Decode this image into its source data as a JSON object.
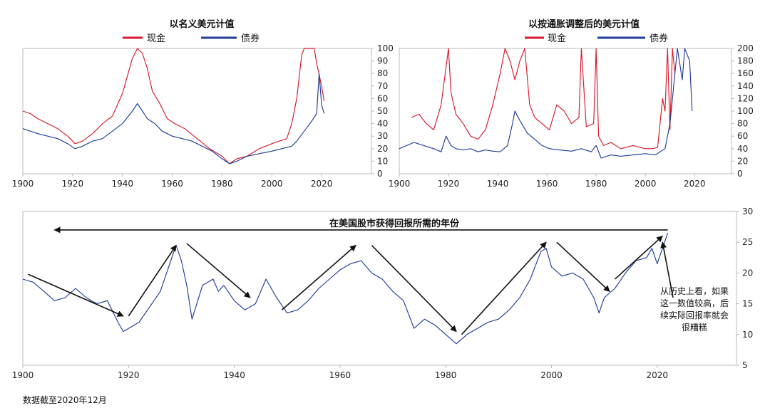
{
  "colors": {
    "cash": "#d7192b",
    "bonds": "#1f3d9a",
    "arrow": "#111111",
    "axis": "#b8b8b8"
  },
  "footnote": "数据截至2020年12月",
  "chart_data": [
    {
      "type": "line",
      "title": "以名义美元计值",
      "legend": "top-center",
      "xlim": [
        1900,
        2040
      ],
      "ylim": [
        0,
        100
      ],
      "x_ticks": [
        1900,
        1920,
        1940,
        1960,
        1980,
        2000,
        2020
      ],
      "y_ticks": [
        0,
        10,
        20,
        30,
        40,
        50,
        60,
        70,
        80,
        90,
        100
      ],
      "series": [
        {
          "name": "现金",
          "color": "#d7192b",
          "x": [
            1900,
            1903,
            1906,
            1910,
            1914,
            1918,
            1921,
            1924,
            1928,
            1932,
            1936,
            1940,
            1942,
            1944,
            1946,
            1948,
            1950,
            1952,
            1955,
            1958,
            1961,
            1965,
            1970,
            1975,
            1980,
            1983,
            1986,
            1990,
            1995,
            2000,
            2003,
            2006,
            2008,
            2010,
            2012,
            2013,
            2015,
            2017,
            2018,
            2020,
            2021
          ],
          "y": [
            50,
            48,
            44,
            40,
            36,
            30,
            24,
            26,
            32,
            40,
            46,
            64,
            78,
            92,
            100,
            96,
            84,
            66,
            56,
            44,
            40,
            36,
            28,
            20,
            14,
            8,
            12,
            14,
            20,
            24,
            26,
            28,
            40,
            60,
            95,
            100,
            100,
            100,
            88,
            70,
            58
          ]
        },
        {
          "name": "债券",
          "color": "#1f3d9a",
          "x": [
            1900,
            1903,
            1906,
            1910,
            1914,
            1918,
            1921,
            1924,
            1928,
            1932,
            1936,
            1940,
            1944,
            1946,
            1948,
            1950,
            1953,
            1956,
            1960,
            1964,
            1968,
            1972,
            1976,
            1980,
            1983,
            1986,
            1990,
            1995,
            2000,
            2004,
            2008,
            2010,
            2013,
            2016,
            2018,
            2019,
            2020,
            2021
          ],
          "y": [
            36,
            34,
            32,
            30,
            28,
            24,
            20,
            22,
            26,
            28,
            34,
            40,
            50,
            56,
            50,
            44,
            40,
            34,
            30,
            28,
            26,
            22,
            18,
            12,
            8,
            10,
            14,
            16,
            18,
            20,
            22,
            26,
            34,
            42,
            48,
            80,
            55,
            48
          ]
        }
      ]
    },
    {
      "type": "line",
      "title": "以按通胀调整后的美元计值",
      "legend": "top-center",
      "xlim": [
        1900,
        2035
      ],
      "ylim": [
        0,
        200
      ],
      "x_ticks": [
        1900,
        1920,
        1940,
        1960,
        1980,
        2000,
        2020
      ],
      "y_ticks": [
        0,
        20,
        40,
        60,
        80,
        100,
        120,
        140,
        160,
        180,
        200
      ],
      "series": [
        {
          "name": "现金",
          "color": "#d7192b",
          "x": [
            1905,
            1908,
            1911,
            1914,
            1917,
            1919,
            1920,
            1921,
            1923,
            1926,
            1929,
            1932,
            1935,
            1938,
            1941,
            1943,
            1945,
            1947,
            1949,
            1951,
            1953,
            1955,
            1958,
            1961,
            1964,
            1967,
            1970,
            1973,
            1974,
            1976,
            1979,
            1980,
            1981,
            1983,
            1986,
            1990,
            1995,
            2000,
            2003,
            2005,
            2007,
            2008,
            2009,
            2010,
            2011,
            2012
          ],
          "y": [
            90,
            95,
            80,
            70,
            110,
            170,
            200,
            130,
            95,
            80,
            60,
            55,
            70,
            110,
            160,
            200,
            180,
            150,
            180,
            200,
            110,
            90,
            80,
            70,
            110,
            100,
            80,
            90,
            200,
            75,
            80,
            200,
            60,
            45,
            50,
            40,
            45,
            40,
            40,
            42,
            120,
            100,
            200,
            70,
            200,
            160
          ]
        },
        {
          "name": "债券",
          "color": "#1f3d9a",
          "x": [
            1900,
            1903,
            1906,
            1910,
            1914,
            1917,
            1919,
            1921,
            1923,
            1926,
            1929,
            1932,
            1935,
            1938,
            1941,
            1944,
            1946,
            1947,
            1949,
            1952,
            1955,
            1958,
            1961,
            1965,
            1970,
            1974,
            1978,
            1980,
            1982,
            1986,
            1990,
            1995,
            2000,
            2004,
            2008,
            2010,
            2011,
            2013,
            2015,
            2016,
            2018,
            2019
          ],
          "y": [
            40,
            45,
            50,
            45,
            40,
            35,
            60,
            45,
            40,
            38,
            40,
            35,
            38,
            36,
            35,
            45,
            80,
            100,
            85,
            65,
            55,
            45,
            40,
            38,
            36,
            40,
            35,
            45,
            25,
            30,
            28,
            30,
            32,
            30,
            40,
            80,
            120,
            200,
            150,
            200,
            180,
            100
          ]
        }
      ]
    },
    {
      "type": "line",
      "title": "在美国股市获得回报所需的年份",
      "xlim": [
        1900,
        2035
      ],
      "ylim": [
        5,
        30
      ],
      "x_ticks": [
        1900,
        1920,
        1940,
        1960,
        1980,
        2000,
        2020
      ],
      "y_ticks": [
        5,
        10,
        15,
        20,
        25,
        30
      ],
      "annotation": [
        "从历史上看，如果",
        "这一数值较高，后",
        "续实际回报率就会",
        "很糟糕"
      ],
      "arrows": [
        [
          1901,
          19.8,
          1919,
          13.0
        ],
        [
          1920,
          13.0,
          1929,
          24.5
        ],
        [
          1931,
          24.8,
          1943,
          16.0
        ],
        [
          1949,
          14.0,
          1963,
          24.5
        ],
        [
          1966,
          24.5,
          1982,
          10.5
        ],
        [
          1983,
          10.0,
          1999,
          25.0
        ],
        [
          2001,
          25.0,
          2011,
          17.0
        ],
        [
          2012,
          19.0,
          2021,
          26.0
        ],
        [
          2023,
          16.0,
          2021,
          25.0
        ],
        [
          2022,
          27.0,
          1906,
          27.0
        ]
      ],
      "series": [
        {
          "name": "",
          "color": "#1f3d9a",
          "x": [
            1900,
            1902,
            1904,
            1906,
            1908,
            1910,
            1912,
            1914,
            1916,
            1918,
            1919,
            1920,
            1922,
            1924,
            1926,
            1928,
            1929,
            1930,
            1931,
            1932,
            1934,
            1936,
            1937,
            1938,
            1940,
            1942,
            1944,
            1946,
            1948,
            1950,
            1952,
            1954,
            1956,
            1958,
            1960,
            1962,
            1964,
            1966,
            1968,
            1970,
            1972,
            1974,
            1976,
            1978,
            1980,
            1982,
            1984,
            1986,
            1988,
            1990,
            1992,
            1994,
            1996,
            1998,
            1999,
            2000,
            2002,
            2004,
            2006,
            2008,
            2009,
            2010,
            2012,
            2014,
            2016,
            2018,
            2019,
            2020,
            2022
          ],
          "y": [
            19.0,
            18.5,
            17.0,
            15.5,
            16.0,
            17.5,
            16.0,
            15.0,
            15.5,
            12.0,
            10.5,
            11.0,
            12.0,
            14.5,
            17.0,
            22.0,
            24.5,
            22.0,
            18.0,
            12.5,
            18.0,
            19.0,
            17.0,
            18.0,
            15.5,
            14.0,
            15.0,
            19.0,
            16.0,
            13.5,
            14.0,
            15.5,
            17.5,
            19.0,
            20.5,
            21.5,
            22.0,
            20.0,
            19.0,
            17.0,
            15.5,
            11.0,
            12.5,
            11.5,
            10.0,
            8.5,
            10.0,
            11.0,
            12.0,
            12.5,
            14.0,
            16.0,
            19.0,
            23.5,
            24.0,
            21.0,
            19.5,
            20.0,
            19.0,
            16.0,
            13.5,
            16.0,
            17.5,
            20.0,
            22.0,
            22.5,
            24.0,
            21.5,
            26.5
          ]
        }
      ]
    }
  ]
}
